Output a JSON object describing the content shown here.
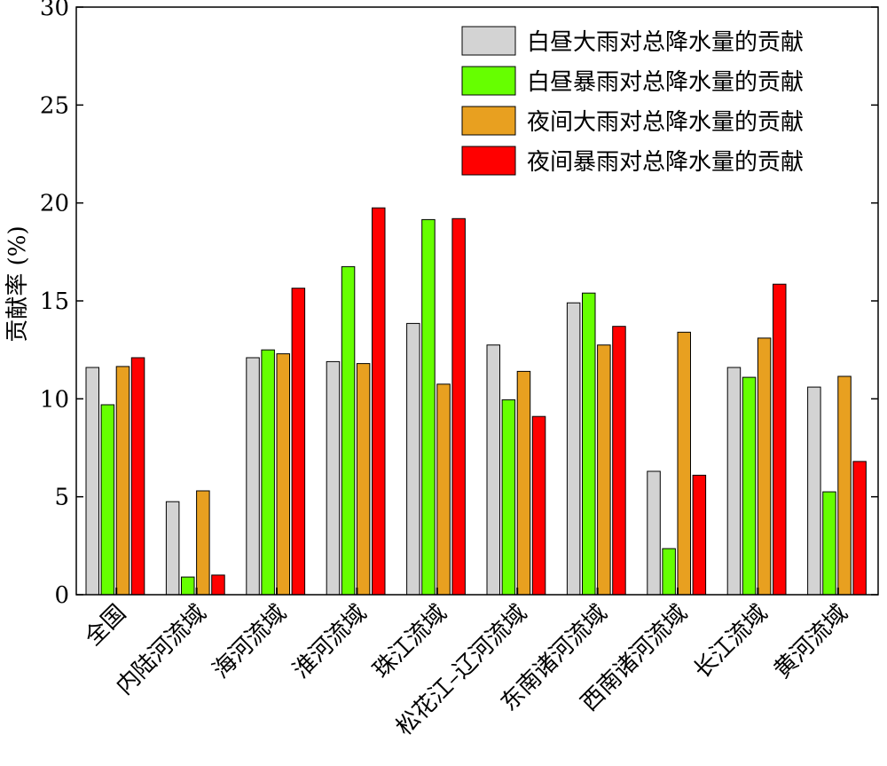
{
  "chart_data": {
    "type": "bar",
    "ylabel": "贡献率 (%)",
    "ylim": [
      0,
      30
    ],
    "yticks": [
      0,
      5,
      10,
      15,
      20,
      25,
      30
    ],
    "grid": false,
    "legend_position": "top-right",
    "categories": [
      "全国",
      "内陆河流域",
      "海河流域",
      "淮河流域",
      "珠江流域",
      "松花江–辽河流域",
      "东南诸河流域",
      "西南诸河流域",
      "长江流域",
      "黄河流域"
    ],
    "series": [
      {
        "name": "白昼大雨对总降水量的贡献",
        "color": "#d3d3d3",
        "values": [
          11.6,
          4.75,
          12.1,
          11.9,
          13.85,
          12.75,
          14.9,
          6.3,
          11.6,
          10.6
        ]
      },
      {
        "name": "白昼暴雨对总降水量的贡献",
        "color": "#66ff00",
        "values": [
          9.7,
          0.9,
          12.5,
          16.75,
          19.15,
          9.95,
          15.4,
          2.35,
          11.1,
          5.25
        ]
      },
      {
        "name": "夜间大雨对总降水量的贡献",
        "color": "#e8a020",
        "values": [
          11.65,
          5.3,
          12.3,
          11.8,
          10.75,
          11.4,
          12.75,
          13.4,
          13.1,
          11.15
        ]
      },
      {
        "name": "夜间暴雨对总降水量的贡献",
        "color": "#ff0000",
        "values": [
          12.1,
          1.0,
          15.65,
          19.75,
          19.2,
          9.1,
          13.7,
          6.1,
          15.85,
          6.8
        ]
      }
    ]
  }
}
